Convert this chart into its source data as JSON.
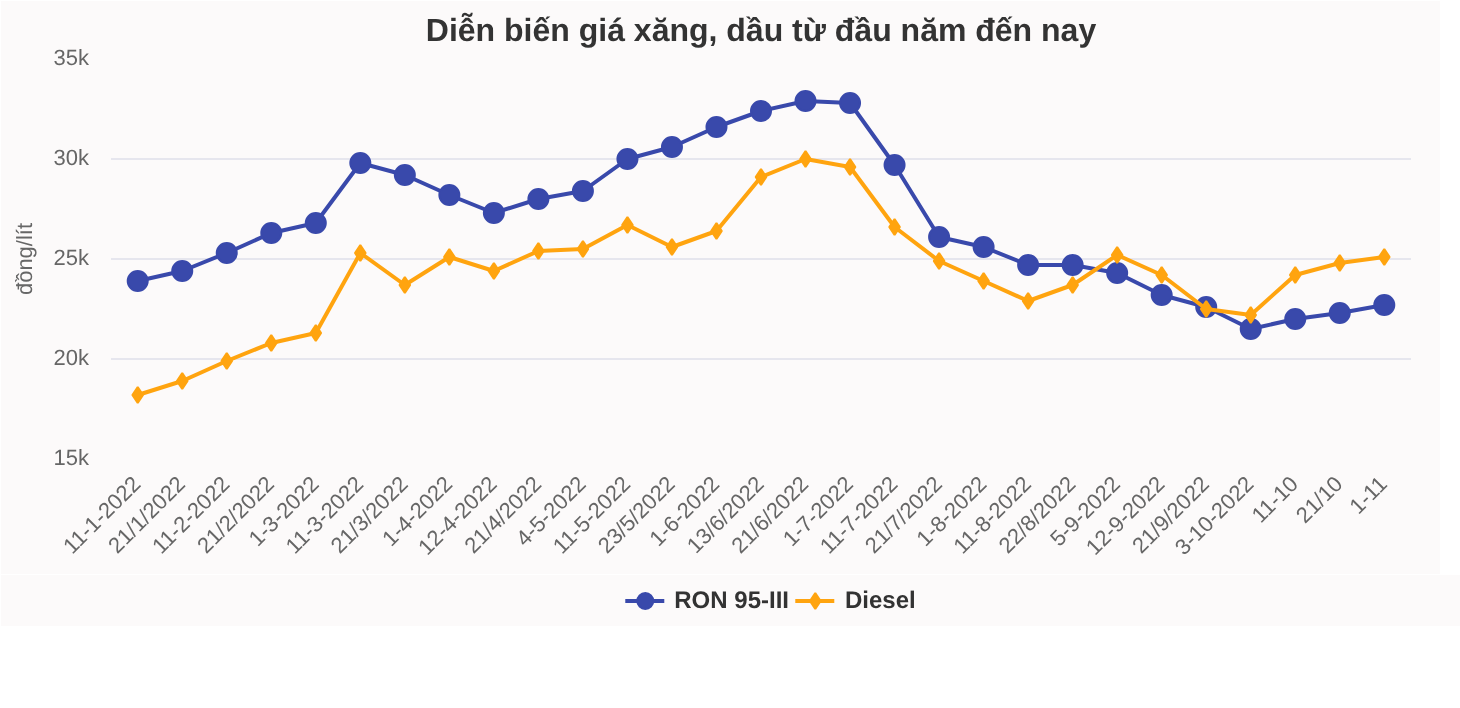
{
  "chart_data": {
    "type": "line",
    "title": "Diễn biến giá xăng, dầu từ đầu năm đến nay",
    "ylabel": "đồng/lít",
    "categories": [
      "11-1-2022",
      "21/1/2022",
      "11-2-2022",
      "21/2/2022",
      "1-3-2022",
      "11-3-2022",
      "21/3/2022",
      "1-4-2022",
      "12-4-2022",
      "21/4/2022",
      "4-5-2022",
      "11-5-2022",
      "23/5/2022",
      "1-6-2022",
      "13/6/2022",
      "21/6/2022",
      "1-7-2022",
      "11-7-2022",
      "21/7/2022",
      "1-8-2022",
      "11-8-2022",
      "22/8/2022",
      "5-9-2022",
      "12-9-2022",
      "21/9/2022",
      "3-10-2022",
      "11-10",
      "21/10",
      "1-11"
    ],
    "series": [
      {
        "name": "RON 95-III",
        "color": "#3949ab",
        "marker": "circle",
        "values": [
          23900,
          24400,
          25300,
          26300,
          26800,
          29800,
          29200,
          28200,
          27300,
          28000,
          28400,
          30000,
          30600,
          31600,
          32400,
          32900,
          32800,
          29700,
          26100,
          25600,
          24700,
          24700,
          24300,
          23200,
          22600,
          21500,
          22000,
          22300,
          22700
        ]
      },
      {
        "name": "Diesel",
        "color": "#ffa40f",
        "marker": "diamond",
        "values": [
          18200,
          18900,
          19900,
          20800,
          21300,
          25300,
          23700,
          25100,
          24400,
          25400,
          25500,
          26700,
          25600,
          26400,
          29100,
          30000,
          29600,
          26600,
          24900,
          23900,
          22900,
          23700,
          25200,
          24200,
          22500,
          22200,
          24200,
          24800,
          25100
        ]
      }
    ],
    "ylim": [
      15000,
      35000
    ],
    "yticks": [
      {
        "value": 15000,
        "label": "15k"
      },
      {
        "value": 20000,
        "label": "20k"
      },
      {
        "value": 25000,
        "label": "25k"
      },
      {
        "value": 30000,
        "label": "30k"
      },
      {
        "value": 35000,
        "label": "35k"
      }
    ],
    "grid": "y",
    "legend": "bottom"
  }
}
